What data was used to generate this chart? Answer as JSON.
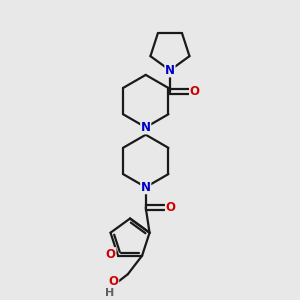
{
  "bg_color": "#e8e8e8",
  "bond_color": "#1a1a1a",
  "N_color": "#0000cc",
  "O_color": "#cc0000",
  "OH_color": "#cc0000",
  "H_color": "#606060",
  "line_width": 1.6,
  "fig_size": [
    3.0,
    3.0
  ],
  "dpi": 100,
  "xlim": [
    0,
    10
  ],
  "ylim": [
    0,
    10
  ]
}
